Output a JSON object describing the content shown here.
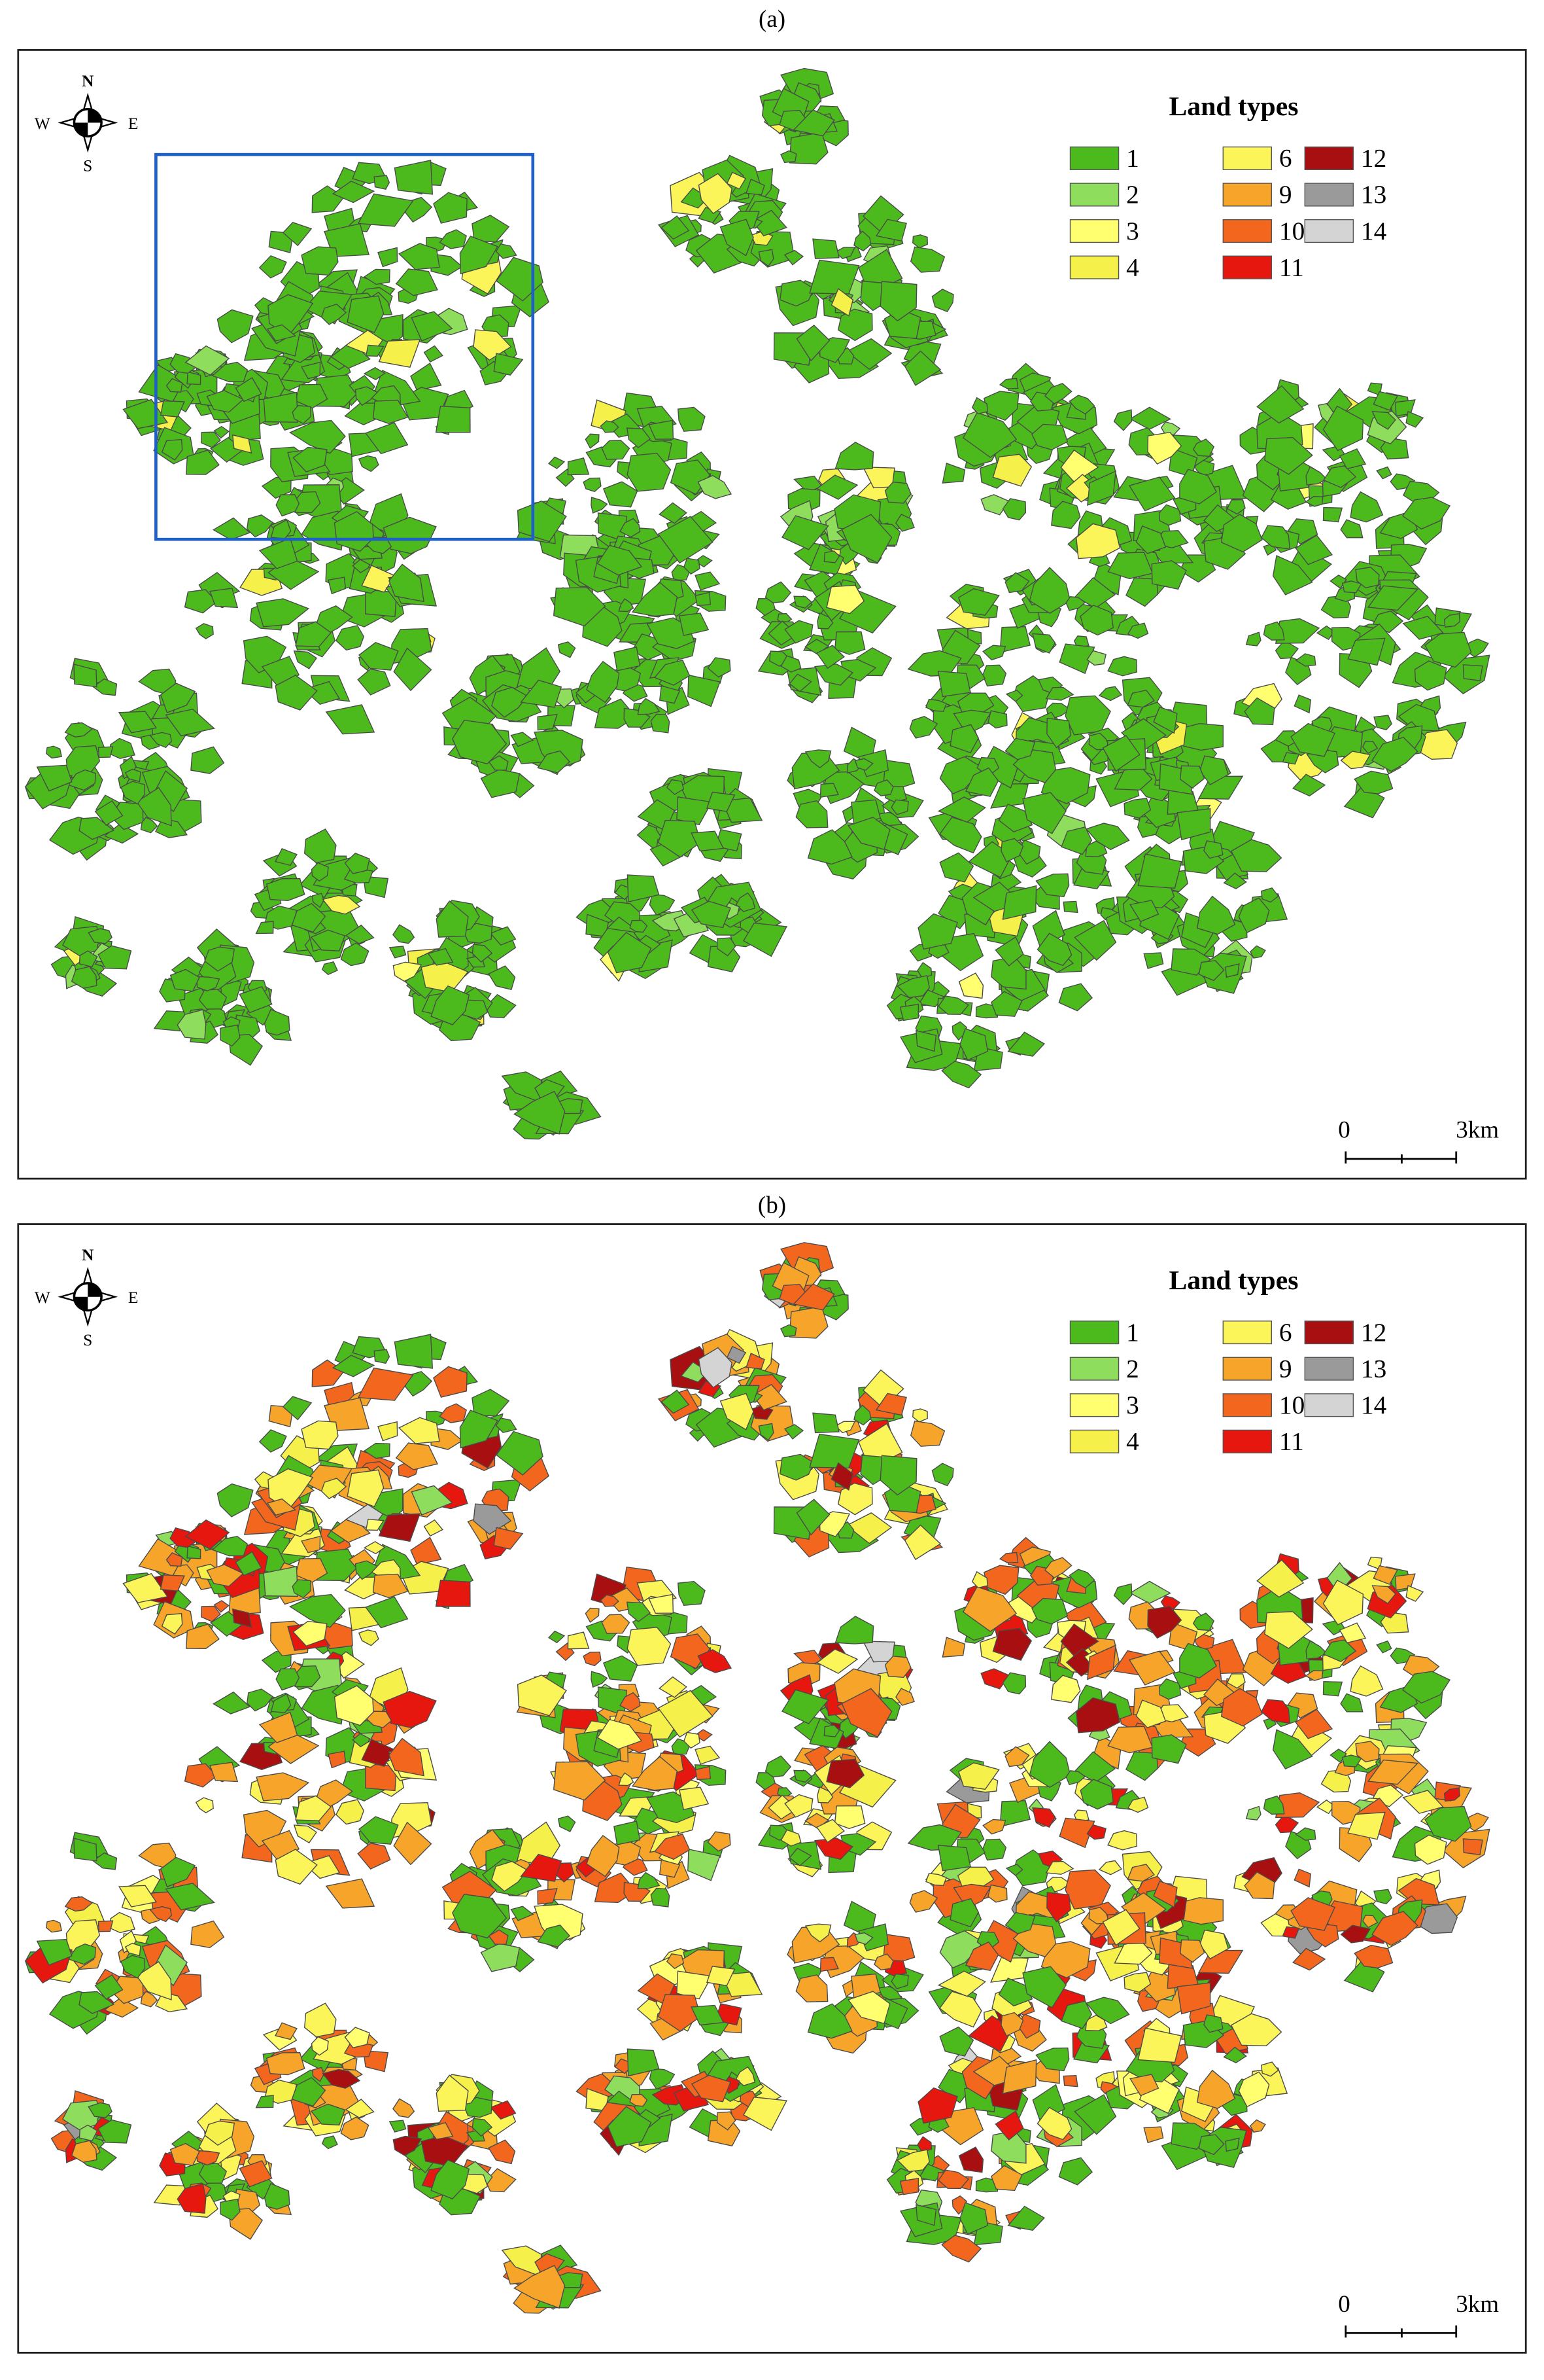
{
  "panels": [
    {
      "label": "(a)",
      "compass": {
        "n": "N",
        "s": "S",
        "w": "W",
        "e": "E"
      },
      "legend": {
        "title": "Land types",
        "items": [
          {
            "label": "1",
            "color": "#4cba1c"
          },
          {
            "label": "2",
            "color": "#8fdd5c"
          },
          {
            "label": "3",
            "color": "#ffff70"
          },
          {
            "label": "4",
            "color": "#f6f04a"
          },
          {
            "label": "6",
            "color": "#fbf55a"
          },
          {
            "label": "9",
            "color": "#f6a52a"
          },
          {
            "label": "10",
            "color": "#f2661e"
          },
          {
            "label": "11",
            "color": "#e5170f"
          },
          {
            "label": "12",
            "color": "#a80f10"
          },
          {
            "label": "13",
            "color": "#9a9a9a"
          },
          {
            "label": "14",
            "color": "#d4d4d4"
          }
        ]
      },
      "scale_bar": {
        "start": "0",
        "end": "3km"
      }
    },
    {
      "label": "(b)",
      "compass": {
        "n": "N",
        "s": "S",
        "w": "W",
        "e": "E"
      },
      "legend": {
        "title": "Land types",
        "items": [
          {
            "label": "1",
            "color": "#4cba1c"
          },
          {
            "label": "2",
            "color": "#8fdd5c"
          },
          {
            "label": "3",
            "color": "#ffff70"
          },
          {
            "label": "4",
            "color": "#f6f04a"
          },
          {
            "label": "6",
            "color": "#fbf55a"
          },
          {
            "label": "9",
            "color": "#f6a52a"
          },
          {
            "label": "10",
            "color": "#f2661e"
          },
          {
            "label": "11",
            "color": "#e5170f"
          },
          {
            "label": "12",
            "color": "#a80f10"
          },
          {
            "label": "13",
            "color": "#9a9a9a"
          },
          {
            "label": "14",
            "color": "#d4d4d4"
          }
        ]
      },
      "scale_bar": {
        "start": "0",
        "end": "3km"
      }
    }
  ]
}
